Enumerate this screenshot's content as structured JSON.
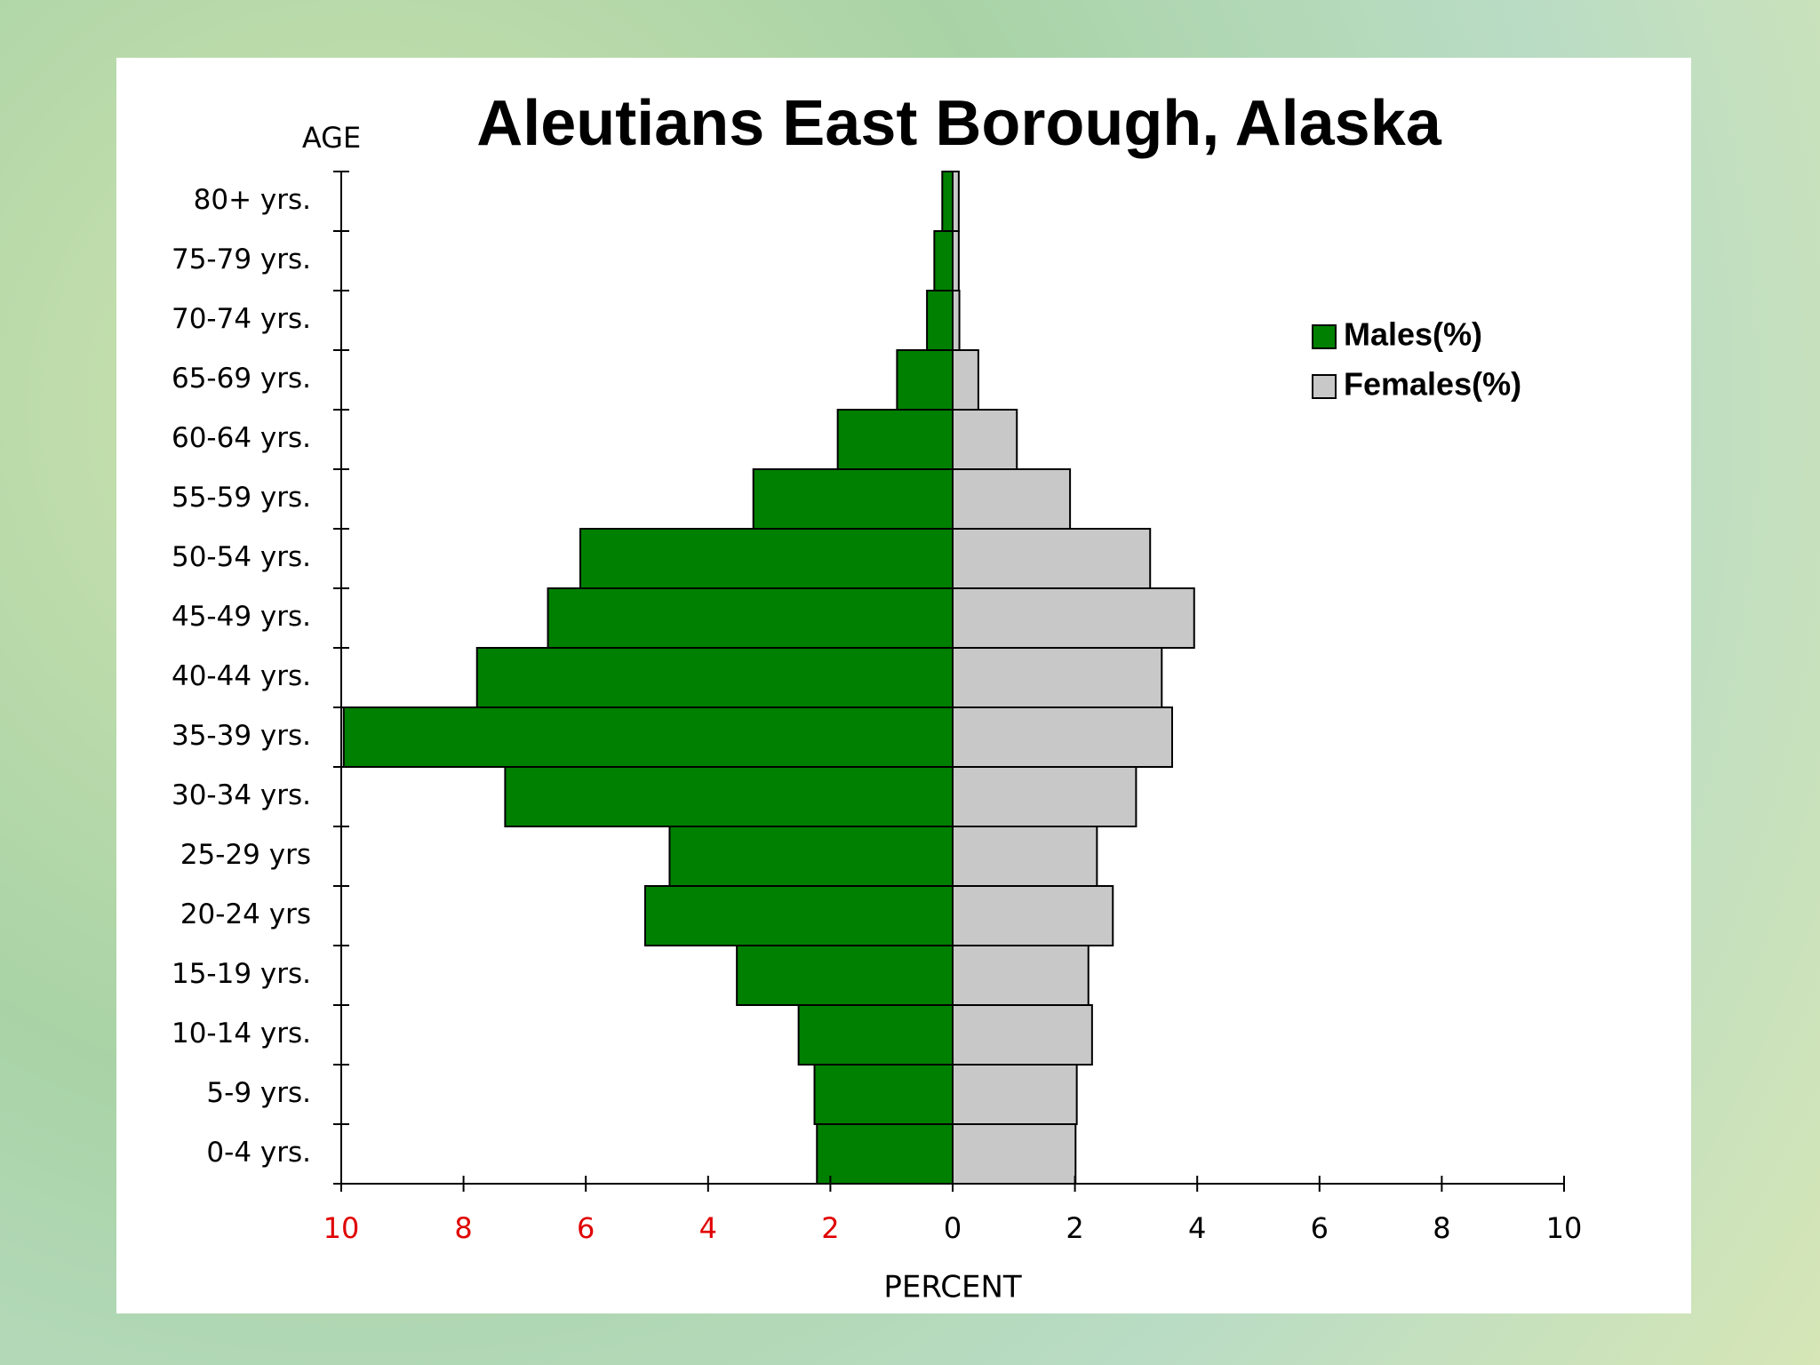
{
  "chart_data": {
    "type": "pyramid",
    "title": "Aleutians East Borough, Alaska",
    "y_label": "AGE",
    "x_label": "PERCENT",
    "categories": [
      "80+ yrs.",
      "75-79 yrs.",
      "70-74 yrs.",
      "65-69 yrs.",
      "60-64 yrs.",
      "55-59 yrs.",
      "50-54 yrs.",
      "45-49 yrs.",
      "40-44 yrs.",
      "35-39 yrs.",
      "30-34 yrs.",
      "25-29 yrs",
      "20-24 yrs",
      "15-19 yrs.",
      "10-14 yrs.",
      "5-9 yrs.",
      "0-4 yrs."
    ],
    "series": [
      {
        "name": "Males(%)",
        "color": "#008000",
        "side": "left",
        "values": [
          0.17,
          0.3,
          0.42,
          0.91,
          1.88,
          3.26,
          6.09,
          6.62,
          7.78,
          9.96,
          7.32,
          4.63,
          5.03,
          3.53,
          2.52,
          2.26,
          2.22
        ]
      },
      {
        "name": "Females(%)",
        "color": "#c8c8c8",
        "side": "right",
        "values": [
          0.1,
          0.1,
          0.11,
          0.42,
          1.05,
          1.92,
          3.23,
          3.95,
          3.42,
          3.59,
          3.0,
          2.36,
          2.62,
          2.22,
          2.28,
          2.03,
          2.01
        ]
      }
    ],
    "xlim": [
      0,
      10
    ],
    "left_xticks": [
      10,
      8,
      6,
      4,
      2
    ],
    "left_tick_color": "#e00000",
    "right_xticks": [
      0,
      2,
      4,
      6,
      8,
      10
    ],
    "right_tick_color": "#000000"
  }
}
